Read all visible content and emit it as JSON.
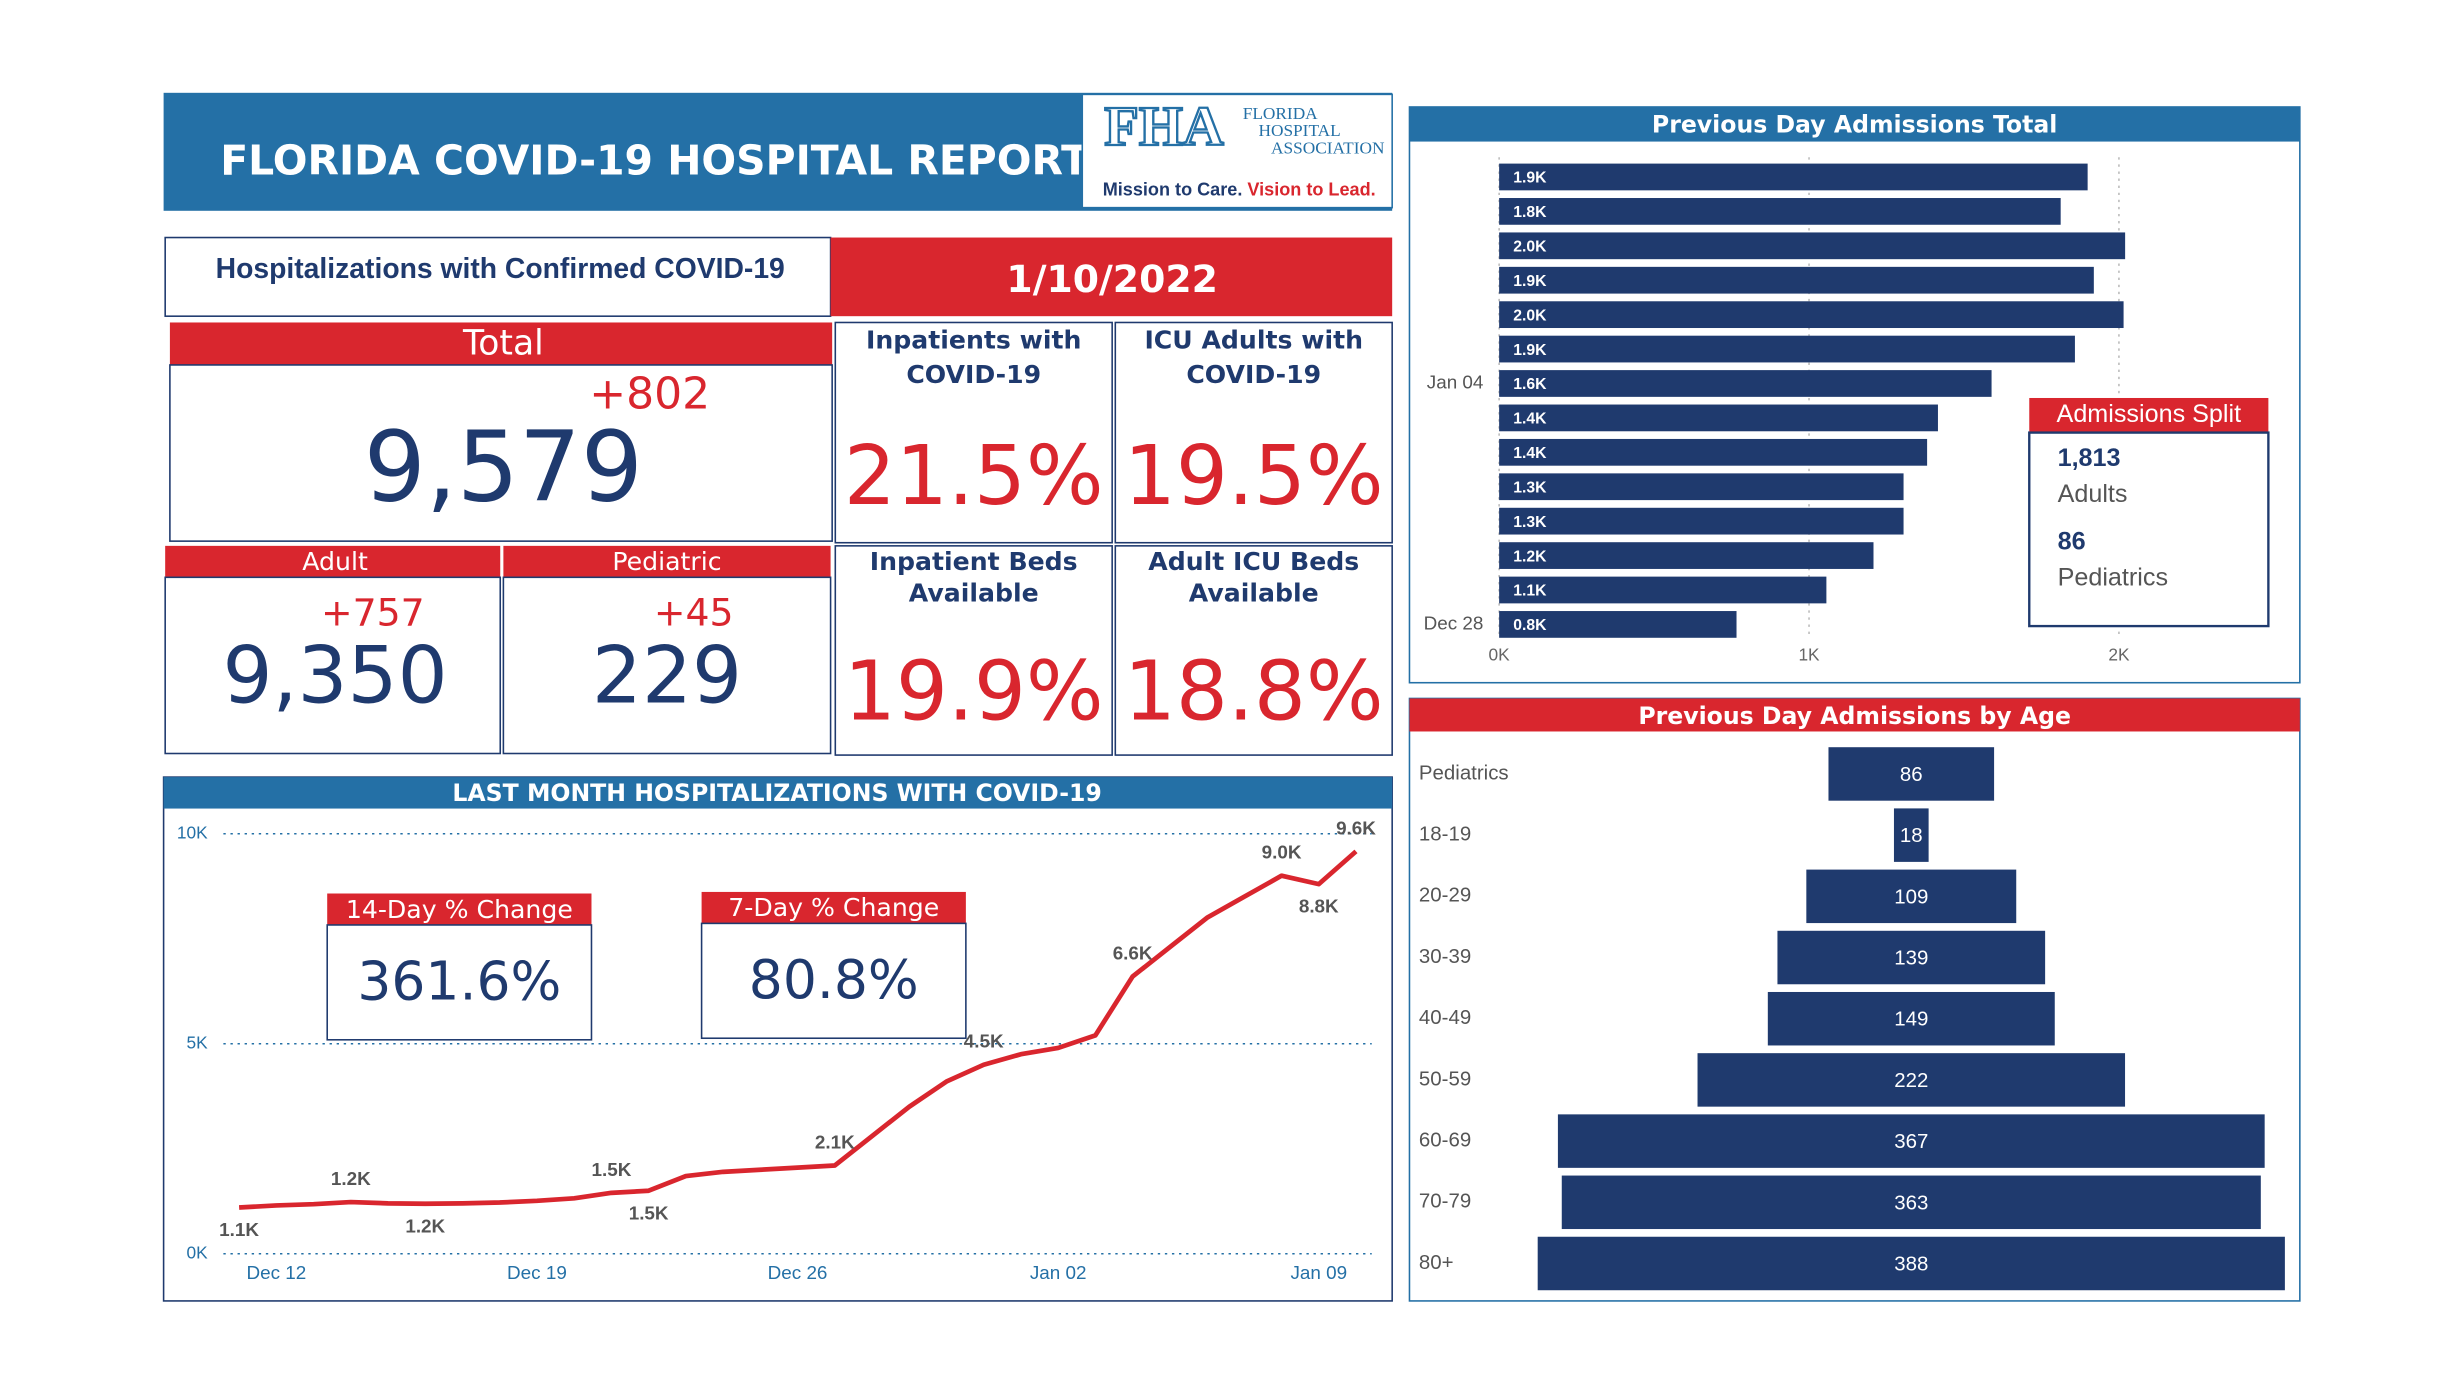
{
  "header": {
    "title": "FLORIDA COVID-19 HOSPITAL REPORT",
    "logo": {
      "mark": "FHA",
      "line1": "FLORIDA",
      "line2": "HOSPITAL",
      "line3": "ASSOCIATION",
      "tagline1": "Mission to Care.",
      "tagline2": "Vision to Lead."
    }
  },
  "kpis": {
    "section_title": "Hospitalizations with Confirmed COVID-19",
    "date": "1/10/2022",
    "total": {
      "label": "Total",
      "value": "9,579",
      "change": "+802"
    },
    "adult": {
      "label": "Adult",
      "value": "9,350",
      "change": "+757"
    },
    "pediatric": {
      "label": "Pediatric",
      "value": "229",
      "change": "+45"
    },
    "tiles": [
      {
        "label": [
          "Inpatients with",
          "COVID-19"
        ],
        "value": "21.5%"
      },
      {
        "label": [
          "ICU Adults with",
          "COVID-19"
        ],
        "value": "19.5%"
      },
      {
        "label": [
          "Inpatient Beds",
          "Available"
        ],
        "value": "19.9%"
      },
      {
        "label": [
          "Adult ICU Beds",
          "Available"
        ],
        "value": "18.8%"
      }
    ]
  },
  "chart_data": [
    {
      "type": "bar",
      "orientation": "horizontal",
      "title": "Previous Day Admissions Total",
      "categories": [
        null,
        null,
        null,
        null,
        null,
        null,
        "Jan 04",
        null,
        null,
        null,
        null,
        null,
        null,
        "Dec 28"
      ],
      "values": [
        1899,
        1812,
        2020,
        1919,
        2015,
        1858,
        1589,
        1416,
        1381,
        1305,
        1305,
        1208,
        1056,
        766
      ],
      "value_labels": [
        "1.9K",
        "1.8K",
        "2.0K",
        "1.9K",
        "2.0K",
        "1.9K",
        "1.6K",
        "1.4K",
        "1.4K",
        "1.3K",
        "1.3K",
        "1.2K",
        "1.1K",
        "0.8K"
      ],
      "color": "#1f3a6e",
      "xlim": [
        0,
        2500
      ],
      "xticks": [
        {
          "value": 0,
          "label": "0K"
        },
        {
          "value": 1000,
          "label": "1K"
        },
        {
          "value": 2000,
          "label": "2K"
        }
      ],
      "grid": true,
      "annotation": {
        "title": "Admissions Split",
        "items": [
          {
            "value": "1,813",
            "label": "Adults"
          },
          {
            "value": "86",
            "label": "Pediatrics"
          }
        ]
      }
    },
    {
      "type": "funnel",
      "title": "Previous Day Admissions by Age",
      "categories": [
        "Pediatrics",
        "18-19",
        "20-29",
        "30-39",
        "40-49",
        "50-59",
        "60-69",
        "70-79",
        "80+"
      ],
      "values": [
        86,
        18,
        109,
        139,
        149,
        222,
        367,
        363,
        388
      ],
      "color": "#1f3a6e"
    },
    {
      "type": "line",
      "title": "LAST MONTH HOSPITALIZATIONS WITH COVID-19",
      "categories": [
        null,
        "Dec 12",
        null,
        null,
        null,
        null,
        null,
        null,
        "Dec 19",
        null,
        null,
        null,
        null,
        null,
        null,
        "Dec 26",
        null,
        null,
        null,
        null,
        null,
        null,
        "Jan 02",
        null,
        null,
        null,
        null,
        null,
        null,
        "Jan 09",
        null
      ],
      "values": [
        1100,
        1150,
        1180,
        1230,
        1200,
        1190,
        1200,
        1220,
        1260,
        1320,
        1450,
        1500,
        1850,
        1950,
        2000,
        2050,
        2100,
        2800,
        3500,
        4100,
        4500,
        4750,
        4900,
        5200,
        6600,
        7300,
        8000,
        8500,
        9000,
        8800,
        9579
      ],
      "value_labels": [
        "1.1K",
        null,
        null,
        "1.2K",
        null,
        "1.2K",
        null,
        null,
        null,
        null,
        "1.5K",
        "1.5K",
        null,
        null,
        null,
        null,
        "2.1K",
        null,
        null,
        null,
        "4.5K",
        null,
        null,
        null,
        "6.6K",
        null,
        null,
        null,
        "9.0K",
        "8.8K",
        "9.6K"
      ],
      "color": "#d9262e",
      "ylim": [
        0,
        10000
      ],
      "yticks": [
        {
          "value": 0,
          "label": "0K"
        },
        {
          "value": 5000,
          "label": "5K"
        },
        {
          "value": 10000,
          "label": "10K"
        }
      ],
      "grid": true,
      "annotations": [
        {
          "title": "14-Day % Change",
          "value": "361.6%"
        },
        {
          "title": "7-Day % Change",
          "value": "80.8%"
        }
      ]
    }
  ]
}
